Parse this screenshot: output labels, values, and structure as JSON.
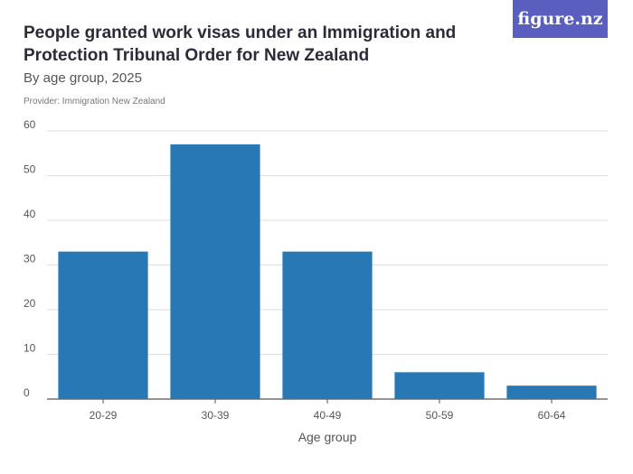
{
  "header": {
    "title": "People granted work visas under an Immigration and Protection Tribunal Order for New Zealand",
    "subtitle": "By age group, 2025",
    "provider": "Provider: Immigration New Zealand",
    "logo_text": "figure.nz"
  },
  "colors": {
    "bar": "#2878b5",
    "grid": "#dddddd",
    "logo_bg": "#5a5fbf"
  },
  "chart_data": {
    "type": "bar",
    "title": "People granted work visas under an Immigration and Protection Tribunal Order for New Zealand",
    "subtitle": "By age group, 2025",
    "xlabel": "Age group",
    "ylabel": "",
    "categories": [
      "20-29",
      "30-39",
      "40-49",
      "50-59",
      "60-64"
    ],
    "values": [
      33,
      57,
      33,
      6,
      3
    ],
    "ylim": [
      0,
      60
    ],
    "yticks": [
      0,
      10,
      20,
      30,
      40,
      50,
      60
    ],
    "grid": true,
    "legend": "none"
  }
}
